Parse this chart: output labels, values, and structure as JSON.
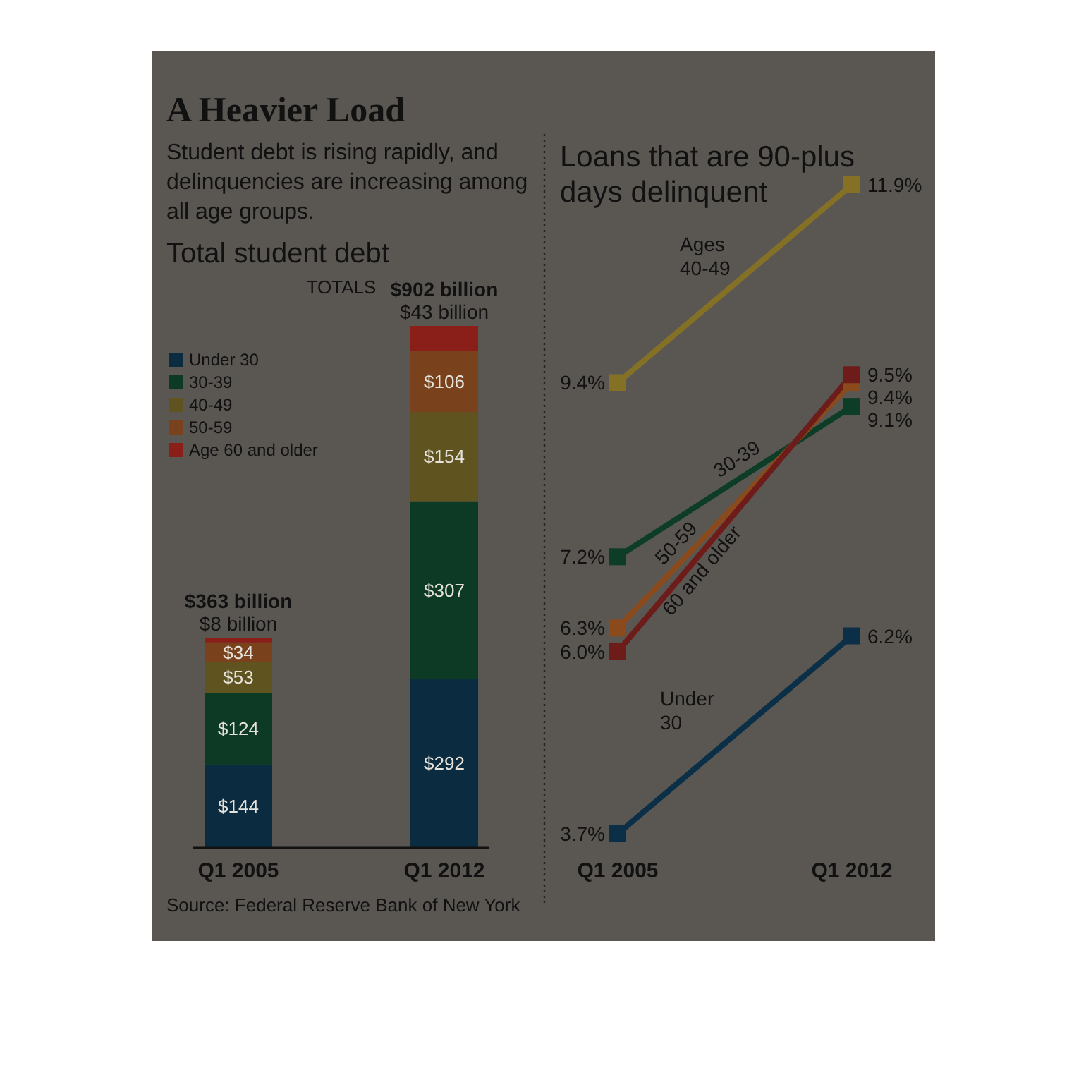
{
  "chart_data": [
    {
      "type": "bar",
      "stacked": true,
      "title": "A Heavier Load",
      "subtitle": "Student debt is rising rapidly, and delinquencies are increasing among all age groups.",
      "categories": [
        "Q1 2005",
        "Q1 2012"
      ],
      "series": [
        {
          "name": "Under 30",
          "color": "#0b2c40",
          "values": [
            144,
            292
          ],
          "value_labels": [
            "$144",
            "$292"
          ]
        },
        {
          "name": "30-39",
          "color": "#0d3a24",
          "values": [
            124,
            307
          ],
          "value_labels": [
            "$124",
            "$307"
          ]
        },
        {
          "name": "40-49",
          "color": "#5f5420",
          "values": [
            53,
            154
          ],
          "value_labels": [
            "$53",
            "$154"
          ]
        },
        {
          "name": "50-59",
          "color": "#7a421c",
          "values": [
            34,
            106
          ],
          "value_labels": [
            "$34",
            "$106"
          ]
        },
        {
          "name": "Age 60 and older",
          "color": "#8a1f1a",
          "values": [
            8,
            43
          ],
          "value_labels": [
            "$8 billion",
            "$43 billion"
          ]
        }
      ],
      "totals": [
        "$363 billion",
        "$902 billion"
      ],
      "annotations": [
        "Total student debt",
        "TOTALS",
        "Source: Federal Reserve Bank of New York"
      ],
      "legend": "top left"
    },
    {
      "type": "line",
      "title": "Loans that are 90-plus days delinquent",
      "marker": "square",
      "categories": [
        "Q1 2005",
        "Q1 2012"
      ],
      "series": [
        {
          "name": "Under 30",
          "color": "#0a2f47",
          "values": [
            3.7,
            6.2
          ],
          "value_labels": [
            "3.7%",
            "6.2%"
          ]
        },
        {
          "name": "30-39",
          "color": "#0d3d26",
          "values": [
            7.2,
            9.1
          ],
          "value_labels": [
            "7.2%",
            "9.1%"
          ]
        },
        {
          "name": "Ages 40-49",
          "color": "#857126",
          "values": [
            9.4,
            11.9
          ],
          "value_labels": [
            "9.4%",
            "11.9%"
          ]
        },
        {
          "name": "50-59",
          "color": "#8a4a1c",
          "values": [
            6.3,
            9.4
          ],
          "value_labels": [
            "6.3%",
            "9.4%"
          ]
        },
        {
          "name": "60 and older",
          "color": "#6e1c1a",
          "values": [
            6.0,
            9.5
          ],
          "value_labels": [
            "6.0%",
            "9.5%"
          ]
        }
      ],
      "legend": false
    }
  ]
}
